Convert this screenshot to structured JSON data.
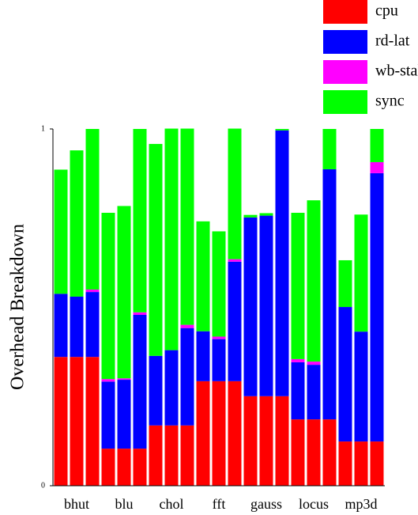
{
  "chart_data": {
    "type": "stacked-bar",
    "ylabel": "Overhead Breakdown",
    "categories": [
      null,
      "bhut",
      null,
      null,
      "blu",
      null,
      null,
      "chol",
      null,
      null,
      "fft",
      null,
      null,
      "gauss",
      null,
      null,
      "locus",
      null,
      null,
      "mp3d",
      null
    ],
    "series": [
      {
        "name": "cpu",
        "color": "#ff0000",
        "values": [
          0.361,
          0.361,
          0.361,
          0.104,
          0.104,
          0.104,
          0.169,
          0.169,
          0.169,
          0.293,
          0.293,
          0.293,
          0.251,
          0.251,
          0.251,
          0.186,
          0.186,
          0.186,
          0.124,
          0.124,
          0.124
        ]
      },
      {
        "name": "rd-lat",
        "color": "#0000ff",
        "values": [
          0.177,
          0.169,
          0.182,
          0.188,
          0.193,
          0.375,
          0.195,
          0.211,
          0.273,
          0.14,
          0.118,
          0.335,
          0.501,
          0.506,
          0.745,
          0.16,
          0.153,
          0.701,
          0.377,
          0.308,
          0.752
        ]
      },
      {
        "name": "wb-stall",
        "color": "#ff00ff",
        "values": [
          0,
          0,
          0.007,
          0.007,
          0.004,
          0.007,
          0,
          0,
          0.009,
          0,
          0.007,
          0.007,
          0,
          0,
          0,
          0.009,
          0.009,
          0,
          0,
          0,
          0.031
        ]
      },
      {
        "name": "sync",
        "color": "#00ff00",
        "values": [
          0.348,
          0.41,
          0.45,
          0.466,
          0.483,
          0.514,
          0.594,
          0.621,
          0.55,
          0.308,
          0.295,
          0.366,
          0.007,
          0.007,
          0.004,
          0.41,
          0.452,
          0.113,
          0.131,
          0.328,
          0.093
        ]
      }
    ],
    "ylim": [
      0,
      1
    ],
    "yticks": [
      0,
      1
    ],
    "legend": "top-right"
  }
}
